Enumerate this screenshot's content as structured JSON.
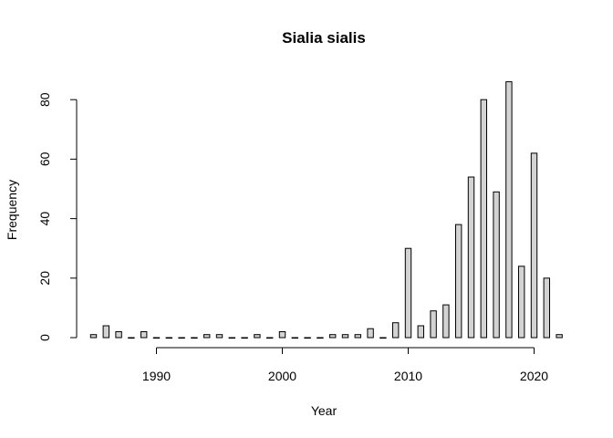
{
  "chart_data": {
    "type": "bar",
    "title": "Sialia sialis",
    "xlabel": "Year",
    "ylabel": "Frequency",
    "x": [
      1985,
      1986,
      1987,
      1988,
      1989,
      1990,
      1991,
      1992,
      1993,
      1994,
      1995,
      1996,
      1997,
      1998,
      1999,
      2000,
      2001,
      2002,
      2003,
      2004,
      2005,
      2006,
      2007,
      2008,
      2009,
      2010,
      2011,
      2012,
      2013,
      2014,
      2015,
      2016,
      2017,
      2018,
      2019,
      2020,
      2021,
      2022
    ],
    "values": [
      1,
      4,
      2,
      0,
      2,
      0,
      0,
      0,
      0,
      1,
      1,
      0,
      0,
      1,
      0,
      2,
      0,
      0,
      0,
      1,
      1,
      1,
      3,
      0,
      5,
      30,
      4,
      9,
      11,
      38,
      54,
      80,
      49,
      86,
      24,
      62,
      20,
      1
    ],
    "xticks": [
      1990,
      2000,
      2010,
      2020
    ],
    "yticks": [
      0,
      20,
      40,
      60,
      80
    ],
    "xlim": [
      1985,
      2022
    ],
    "ylim": [
      0,
      86
    ],
    "grid": false,
    "bar_fill": "#d3d3d3",
    "bar_stroke": "#000000"
  }
}
